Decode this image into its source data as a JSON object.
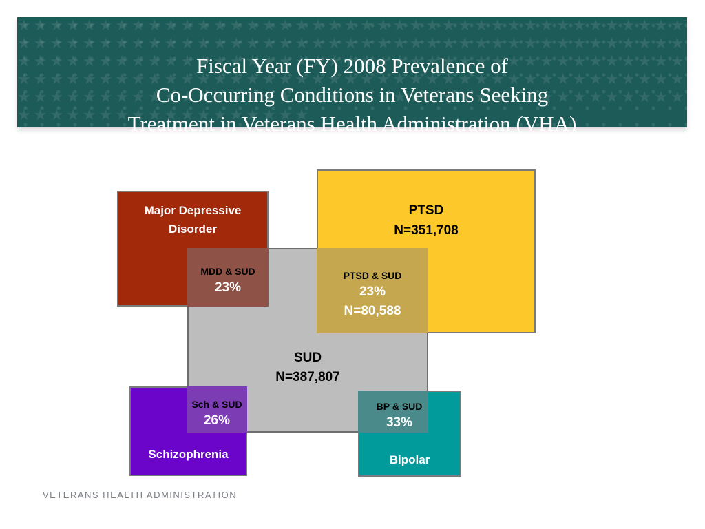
{
  "title": {
    "line1": "Fiscal Year (FY) 2008 Prevalence of",
    "line2": "Co-Occurring Conditions in Veterans Seeking",
    "line3": "Treatment in Veterans Health Administration (VHA)"
  },
  "conditions": {
    "mdd": {
      "label": "Major Depressive Disorder",
      "color": "#a22a0a"
    },
    "ptsd": {
      "label": "PTSD",
      "n": "N=351,708",
      "color": "#fdc82a"
    },
    "sud": {
      "label": "SUD",
      "n": "N=387,807",
      "color": "#b2b2b2"
    },
    "sch": {
      "label": "Schizophrenia",
      "color": "#6a05c9"
    },
    "bp": {
      "label": "Bipolar",
      "color": "#019b9b"
    }
  },
  "overlaps": {
    "mdd_sud": {
      "label": "MDD & SUD",
      "pct": "23%"
    },
    "ptsd_sud": {
      "label": "PTSD & SUD",
      "pct": "23%",
      "n": "N=80,588"
    },
    "sch_sud": {
      "label": "Sch & SUD",
      "pct": "26%"
    },
    "bp_sud": {
      "label": "BP & SUD",
      "pct": "33%"
    }
  },
  "footer": "VETERANS HEALTH ADMINISTRATION",
  "colors": {
    "banner": "#1d5b58"
  }
}
